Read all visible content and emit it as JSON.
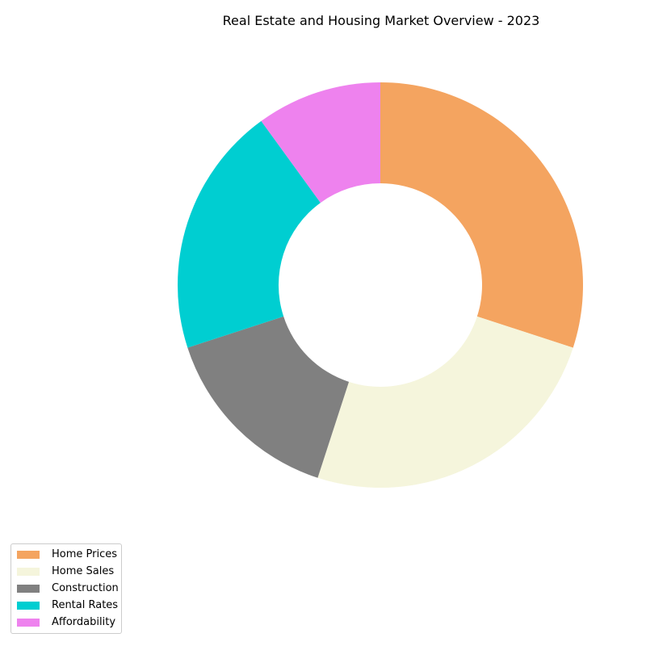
{
  "chart_data": {
    "type": "pie",
    "variant": "donut",
    "title": "Real Estate and Housing Market Overview - 2023",
    "categories": [
      "Home Prices",
      "Home Sales",
      "Construction",
      "Rental Rates",
      "Affordability"
    ],
    "values": [
      30,
      25,
      15,
      20,
      10
    ],
    "colors": [
      "#f4a460",
      "#f5f5dc",
      "#808080",
      "#00ced1",
      "#ee82ee"
    ],
    "start_angle_deg": 90,
    "direction": "clockwise",
    "legend": {
      "placement": "bottom-left",
      "entries": [
        "Home Prices",
        "Home Sales",
        "Construction",
        "Rental Rates",
        "Affordability"
      ]
    }
  }
}
